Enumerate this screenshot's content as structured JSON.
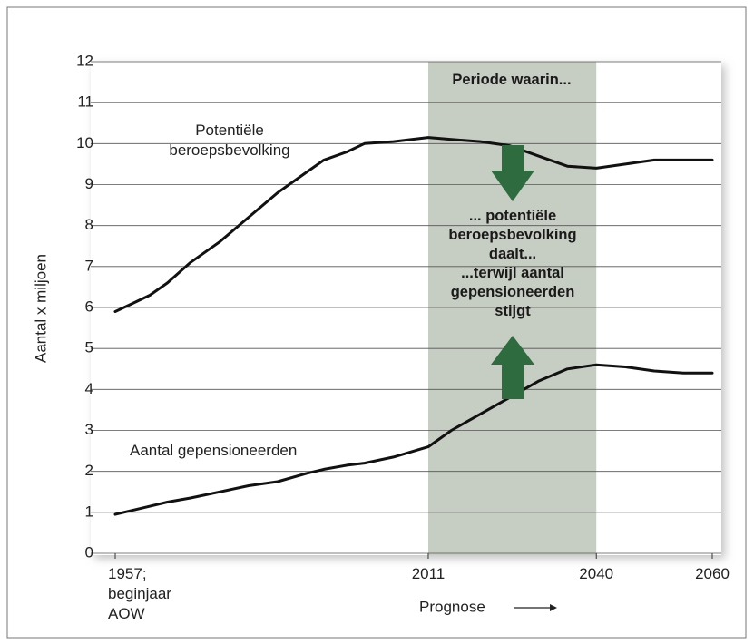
{
  "chart_data": {
    "type": "line",
    "y_label": "Aantal x miljoen",
    "x_label": "Prognose",
    "annotations": [
      "Periode waarin...",
      "... potentiële beroepsbevolking daalt...",
      "...terwijl aantal gepensioneerden stijgt"
    ],
    "highlight": [
      2011,
      2040
    ],
    "x": [
      1957,
      1960,
      1963,
      1966,
      1970,
      1975,
      1980,
      1985,
      1990,
      1993,
      1997,
      2000,
      2005,
      2011,
      2015,
      2020,
      2025,
      2030,
      2035,
      2040,
      2045,
      2050,
      2055,
      2060
    ],
    "series": [
      {
        "name": "Potentiële beroepsbevolking",
        "color": "#111111",
        "values": [
          5.9,
          6.1,
          6.3,
          6.6,
          7.1,
          7.6,
          8.2,
          8.8,
          9.3,
          9.6,
          9.8,
          10.0,
          10.05,
          10.15,
          10.1,
          10.05,
          9.95,
          9.7,
          9.45,
          9.4,
          9.5,
          9.6,
          9.6,
          9.6
        ]
      },
      {
        "name": "Aantal gepensioneerden",
        "color": "#111111",
        "values": [
          0.95,
          1.05,
          1.15,
          1.25,
          1.35,
          1.5,
          1.65,
          1.75,
          1.95,
          2.05,
          2.15,
          2.2,
          2.35,
          2.6,
          3.0,
          3.4,
          3.8,
          4.2,
          4.5,
          4.6,
          4.55,
          4.45,
          4.4,
          4.4
        ]
      }
    ],
    "xlim": [
      1957,
      2060
    ],
    "xticks": [
      {
        "value": 1957,
        "label": "1957; beginjaar AOW"
      },
      2011,
      2040,
      2060
    ],
    "ylim": [
      0,
      12
    ],
    "yticks": [
      0,
      1,
      2,
      3,
      4,
      5,
      6,
      7,
      8,
      9,
      10,
      11,
      12
    ],
    "grid": true
  }
}
